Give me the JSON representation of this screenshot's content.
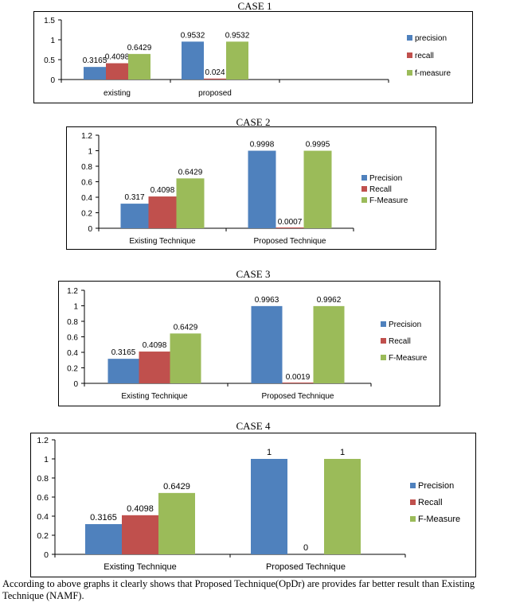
{
  "colors": {
    "precision": "#4f81bd",
    "recall": "#c0504d",
    "fmeasure": "#9bbb59",
    "grid": "#000000"
  },
  "charts": [
    {
      "title": "CASE 1"
    },
    {
      "title": "CASE 2"
    },
    {
      "title": "CASE 3"
    },
    {
      "title": "CASE 4"
    }
  ],
  "chart_data": [
    {
      "type": "bar",
      "title": "CASE 1",
      "categories": [
        "existing",
        "proposed"
      ],
      "series": [
        {
          "name": "precision",
          "values": [
            0.3165,
            0.9532
          ],
          "labels": [
            "0.3165",
            "0.9532"
          ]
        },
        {
          "name": "recall",
          "values": [
            0.4098,
            0.024
          ],
          "labels": [
            "0.4098",
            "0.024"
          ]
        },
        {
          "name": "f-measure",
          "values": [
            0.6429,
            0.9532
          ],
          "labels": [
            "0.6429",
            "0.9532"
          ]
        }
      ],
      "yticks": [
        "0",
        "0.5",
        "1",
        "1.5"
      ],
      "ylim": [
        0,
        1.5
      ],
      "legend_position": "right",
      "grid": false
    },
    {
      "type": "bar",
      "title": "CASE 2",
      "categories": [
        "Existing Technique",
        "Proposed Technique"
      ],
      "series": [
        {
          "name": "Precision",
          "values": [
            0.317,
            0.9998
          ],
          "labels": [
            "0.317",
            "0.9998"
          ]
        },
        {
          "name": "Recall",
          "values": [
            0.4098,
            0.0007
          ],
          "labels": [
            "0.4098",
            "0.0007"
          ]
        },
        {
          "name": "F-Measure",
          "values": [
            0.6429,
            0.9995
          ],
          "labels": [
            "0.6429",
            "0.9995"
          ]
        }
      ],
      "yticks": [
        "0",
        "0.2",
        "0.4",
        "0.6",
        "0.8",
        "1",
        "1.2"
      ],
      "ylim": [
        0,
        1.2
      ],
      "legend_position": "right",
      "grid": false
    },
    {
      "type": "bar",
      "title": "CASE 3",
      "categories": [
        "Existing Technique",
        "Proposed Technique"
      ],
      "series": [
        {
          "name": "Precision",
          "values": [
            0.3165,
            0.9963
          ],
          "labels": [
            "0.3165",
            "0.9963"
          ]
        },
        {
          "name": "Recall",
          "values": [
            0.4098,
            0.0019
          ],
          "labels": [
            "0.4098",
            "0.0019"
          ]
        },
        {
          "name": "F-Measure",
          "values": [
            0.6429,
            0.9962
          ],
          "labels": [
            "0.6429",
            "0.9962"
          ]
        }
      ],
      "yticks": [
        "0",
        "0.2",
        "0.4",
        "0.6",
        "0.8",
        "1",
        "1.2"
      ],
      "ylim": [
        0,
        1.2
      ],
      "legend_position": "right",
      "grid": false
    },
    {
      "type": "bar",
      "title": "CASE 4",
      "categories": [
        "Existing Technique",
        "Proposed Technique"
      ],
      "series": [
        {
          "name": "Precision",
          "values": [
            0.3165,
            1
          ],
          "labels": [
            "0.3165",
            "1"
          ]
        },
        {
          "name": "Recall",
          "values": [
            0.4098,
            0
          ],
          "labels": [
            "0.4098",
            "0"
          ]
        },
        {
          "name": "F-Measure",
          "values": [
            0.6429,
            1
          ],
          "labels": [
            "0.6429",
            "1"
          ]
        }
      ],
      "yticks": [
        "0",
        "0.2",
        "0.4",
        "0.6",
        "0.8",
        "1",
        "1.2"
      ],
      "ylim": [
        0,
        1.2
      ],
      "legend_position": "right",
      "grid": false
    }
  ],
  "caption": "According to above graphs it clearly shows that Proposed Technique(OpDr) are provides far better result than Existing Technique (NAMF)."
}
